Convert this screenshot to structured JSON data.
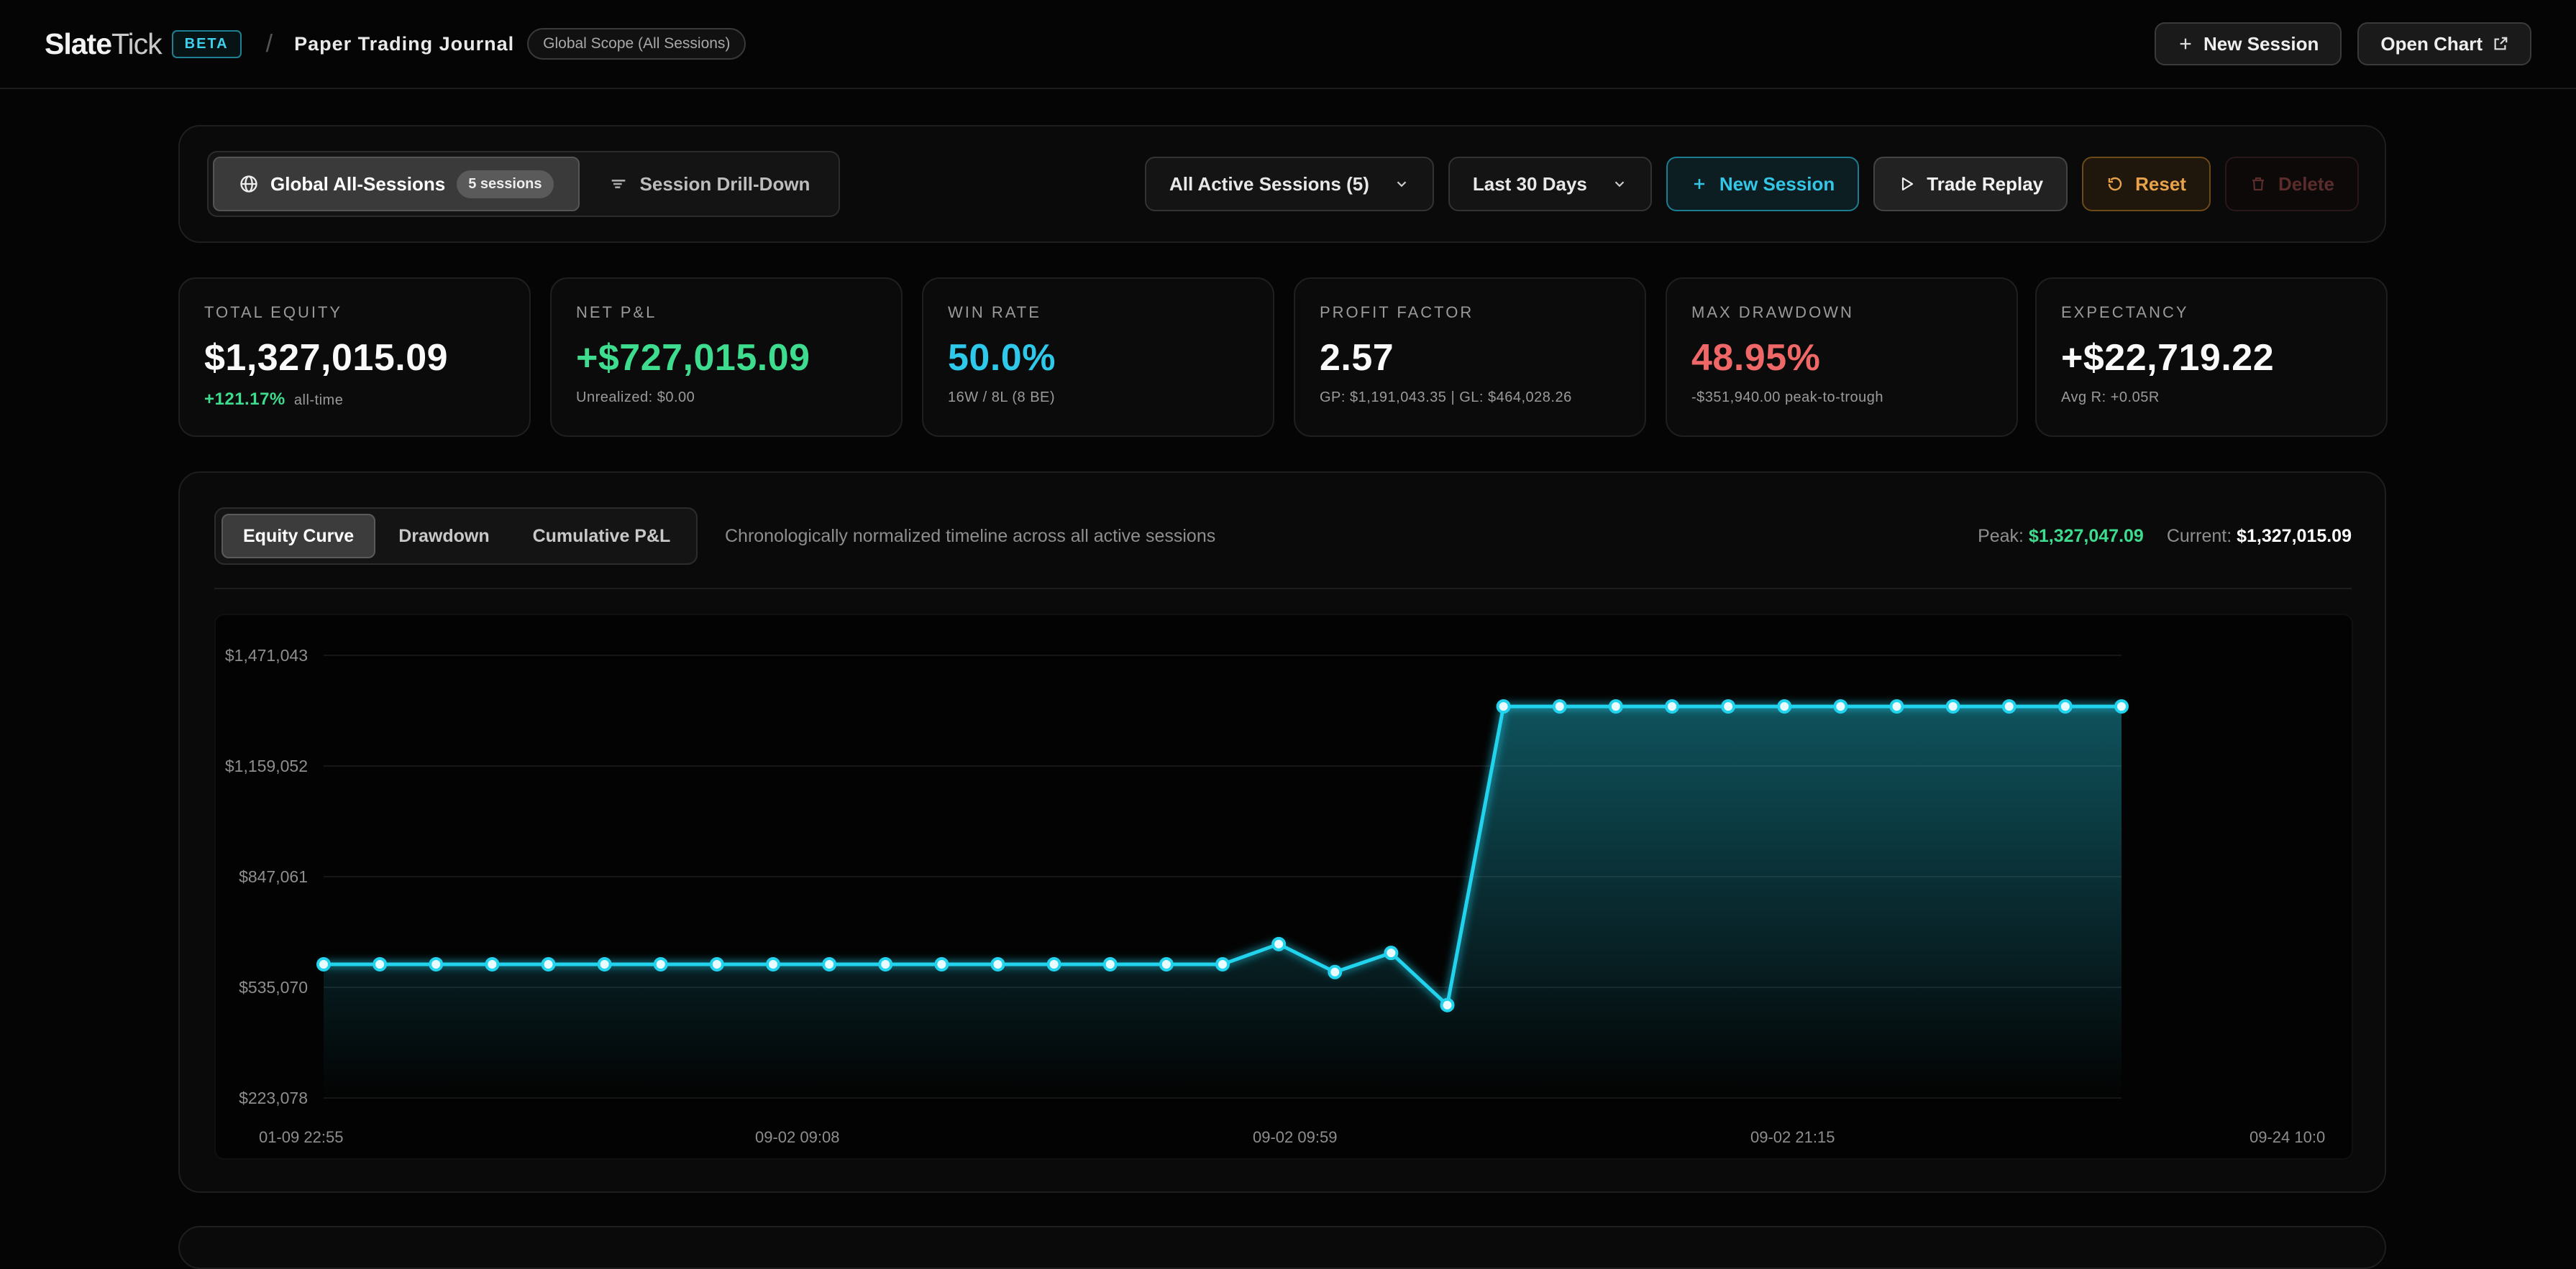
{
  "header": {
    "brand_bold": "Slate",
    "brand_light": "Tick",
    "badge": "BETA",
    "separator": "/",
    "title": "Paper Trading Journal",
    "scope": "Global Scope (All Sessions)",
    "new_session": "New Session",
    "open_chart": "Open Chart"
  },
  "controls": {
    "global_label": "Global All-Sessions",
    "global_count": "5 sessions",
    "drilldown_label": "Session Drill-Down",
    "sessions_filter": "All Active Sessions (5)",
    "range_filter": "Last 30 Days",
    "new_session": "New Session",
    "trade_replay": "Trade Replay",
    "reset": "Reset",
    "delete": "Delete"
  },
  "stats": [
    {
      "label": "TOTAL EQUITY",
      "value": "$1,327,015.09",
      "sub_hl": "+121.17%",
      "sub": "all-time"
    },
    {
      "label": "NET P&L",
      "value": "+$727,015.09",
      "sub_hl": "",
      "sub": "Unrealized: $0.00"
    },
    {
      "label": "WIN RATE",
      "value": "50.0%",
      "sub_hl": "",
      "sub": "16W / 8L (8 BE)"
    },
    {
      "label": "PROFIT FACTOR",
      "value": "2.57",
      "sub_hl": "",
      "sub": "GP: $1,191,043.35 | GL: $464,028.26"
    },
    {
      "label": "MAX DRAWDOWN",
      "value": "48.95%",
      "sub_hl": "",
      "sub": "-$351,940.00 peak-to-trough"
    },
    {
      "label": "EXPECTANCY",
      "value": "+$22,719.22",
      "sub_hl": "",
      "sub": "Avg R: +0.05R"
    }
  ],
  "chart": {
    "tabs": [
      "Equity Curve",
      "Drawdown",
      "Cumulative P&L"
    ],
    "description": "Chronologically normalized timeline across all active sessions",
    "peak_label": "Peak:",
    "peak_value": "$1,327,047.09",
    "current_label": "Current:",
    "current_value": "$1,327,015.09"
  },
  "colors": {
    "accent": "#22d3ee",
    "positive": "#3ddc8e",
    "negative": "#f06767"
  },
  "chart_data": {
    "type": "area",
    "series": [
      {
        "values": [
          600000,
          600000,
          600000,
          600000,
          600000,
          600000,
          600000,
          600000,
          600000,
          600000,
          600000,
          600000,
          600000,
          600000,
          600000,
          600000,
          600000,
          657000,
          578000,
          632000,
          485000,
          1327047,
          1327047,
          1327047,
          1327047,
          1327047,
          1327047,
          1327047,
          1327047,
          1327047,
          1327047,
          1327047,
          1327015
        ]
      }
    ],
    "x_tick_labels": [
      "01-09 22:55",
      "09-02 09:08",
      "09-02 09:59",
      "09-02 21:15",
      "09-24 10:0"
    ],
    "y_tick_labels": [
      "$1,471,043",
      "$1,159,052",
      "$847,061",
      "$535,070",
      "$223,078"
    ],
    "y_ticks": [
      1471043,
      1159052,
      847061,
      535070,
      223078
    ],
    "ylim": [
      223078,
      1471043
    ],
    "grid": true
  }
}
